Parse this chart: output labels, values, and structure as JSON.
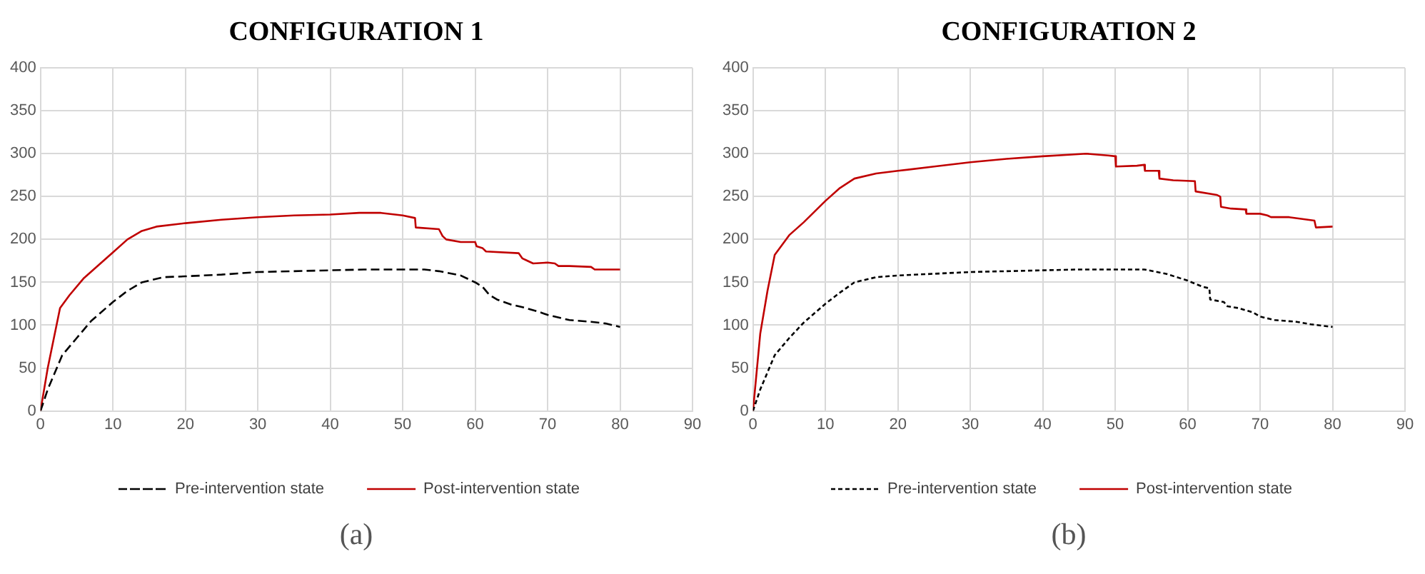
{
  "chart_data": [
    {
      "type": "line",
      "title": "CONFIGURATION 1",
      "annotations": [
        "(a)"
      ],
      "xlim": [
        0,
        90
      ],
      "xticks": [
        0,
        10,
        20,
        30,
        40,
        50,
        60,
        70,
        80,
        90
      ],
      "ylim": [
        0,
        400
      ],
      "yticks": [
        0,
        50,
        100,
        150,
        200,
        250,
        300,
        350,
        400
      ],
      "grid": true,
      "legend": "bottom",
      "marker": "none",
      "series": [
        {
          "name": "Pre-intervention state",
          "color": "#000000",
          "line_style": "dashed",
          "x": [
            0,
            1,
            2,
            3,
            5,
            7,
            10,
            12,
            14,
            17,
            20,
            25,
            30,
            35,
            40,
            45,
            50,
            53,
            55,
            58,
            60,
            61,
            62,
            63,
            65,
            67,
            69,
            70,
            73,
            76,
            78,
            80
          ],
          "values": [
            0,
            25,
            45,
            65,
            85,
            105,
            127,
            140,
            150,
            156,
            157,
            159,
            162,
            163,
            164,
            165,
            165,
            165,
            163,
            158,
            150,
            145,
            135,
            130,
            124,
            120,
            115,
            112,
            106,
            104,
            102,
            98
          ]
        },
        {
          "name": "Post-intervention state",
          "color": "#c00000",
          "line_style": "solid",
          "x": [
            0,
            1,
            2.7,
            4,
            6,
            8,
            10,
            12,
            14,
            16,
            20,
            25,
            30,
            35,
            40,
            44,
            47,
            50,
            51.7,
            51.8,
            55,
            55.5,
            56,
            58,
            60,
            60.2,
            61,
            61.5,
            66,
            66.5,
            67,
            68,
            70,
            71,
            71.5,
            73,
            76,
            76.5,
            80
          ],
          "values": [
            0,
            50,
            120,
            135,
            155,
            170,
            185,
            200,
            210,
            215,
            219,
            223,
            226,
            228,
            229,
            231,
            231,
            228,
            225,
            214,
            212,
            204,
            200,
            197,
            197,
            192,
            190,
            186,
            184,
            178,
            176,
            172,
            173,
            172,
            169,
            169,
            168,
            165,
            165
          ]
        }
      ]
    },
    {
      "type": "line",
      "title": "CONFIGURATION 2",
      "annotations": [
        "(b)"
      ],
      "xlim": [
        0,
        90
      ],
      "xticks": [
        0,
        10,
        20,
        30,
        40,
        50,
        60,
        70,
        80,
        90
      ],
      "ylim": [
        0,
        400
      ],
      "yticks": [
        0,
        50,
        100,
        150,
        200,
        250,
        300,
        350,
        400
      ],
      "grid": true,
      "legend": "bottom",
      "marker": "none",
      "series": [
        {
          "name": "Pre-intervention state",
          "color": "#000000",
          "line_style": "dotted",
          "x": [
            0,
            1,
            2,
            3,
            5,
            7,
            10,
            12,
            14,
            17,
            20,
            25,
            30,
            35,
            40,
            45,
            50,
            54,
            57,
            60,
            62,
            63,
            63.1,
            65,
            65.5,
            67,
            69,
            70,
            72,
            75,
            77,
            80
          ],
          "values": [
            0,
            25,
            45,
            65,
            85,
            103,
            125,
            138,
            150,
            156,
            158,
            160,
            162,
            163,
            164,
            165,
            165,
            165,
            160,
            152,
            145,
            143,
            130,
            127,
            122,
            120,
            115,
            110,
            106,
            104,
            101,
            98
          ]
        },
        {
          "name": "Post-intervention state",
          "color": "#c00000",
          "line_style": "solid",
          "x": [
            0,
            1,
            2,
            3,
            5,
            7,
            10,
            12,
            14,
            17,
            20,
            25,
            30,
            35,
            40,
            44,
            46,
            49,
            50,
            50.1,
            53,
            54,
            54.1,
            56,
            56.1,
            58,
            61,
            61.1,
            64,
            64.5,
            64.6,
            66,
            68,
            68.1,
            70,
            71,
            71.5,
            74,
            77.5,
            77.7,
            80
          ],
          "values": [
            0,
            90,
            140,
            182,
            205,
            220,
            245,
            260,
            271,
            277,
            280,
            285,
            290,
            294,
            297,
            299,
            300,
            298,
            297,
            285,
            286,
            287,
            280,
            280,
            271,
            269,
            268,
            256,
            252,
            250,
            238,
            236,
            235,
            230,
            230,
            228,
            226,
            226,
            222,
            214,
            215
          ]
        }
      ]
    }
  ]
}
